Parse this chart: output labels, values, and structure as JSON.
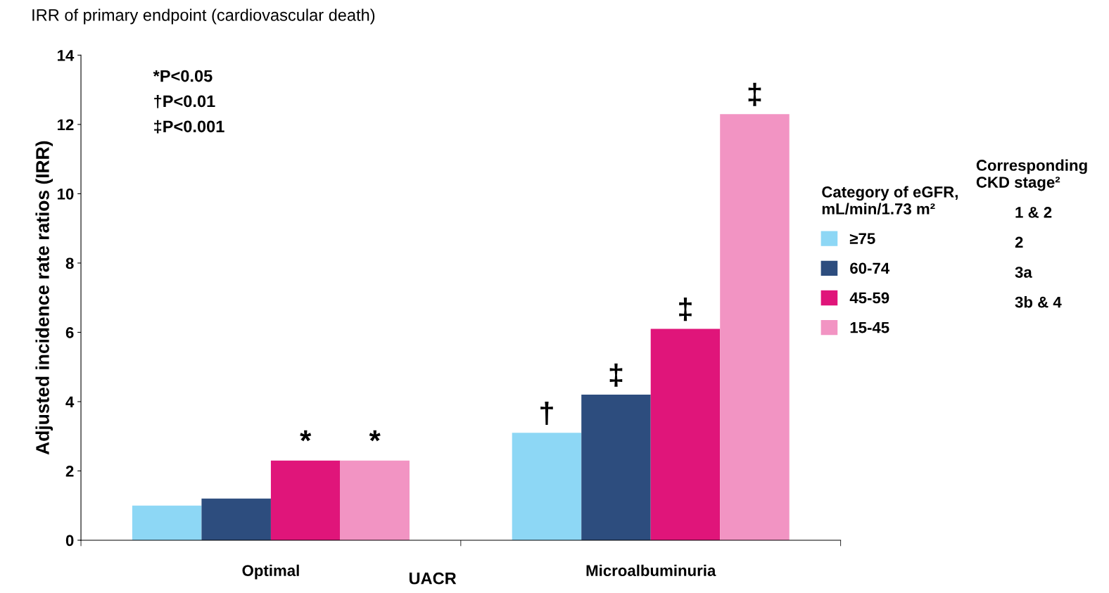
{
  "chart_data": {
    "type": "bar",
    "title": "IRR of primary endpoint (cardiovascular death)",
    "xlabel": "UACR",
    "ylabel": "Adjusted incidence rate ratios (IRR)",
    "legend_title": "Category of eGFR,\nmL/min/1.73 m²",
    "categories": [
      "Optimal",
      "Microalbuminuria"
    ],
    "series": [
      {
        "name": "≥75",
        "color": "#8dd7f5",
        "values": [
          1.0,
          3.1
        ],
        "value_labels": [
          null,
          "†"
        ]
      },
      {
        "name": "60-74",
        "color": "#2d4d7e",
        "values": [
          1.2,
          4.2
        ],
        "value_labels": [
          null,
          "‡"
        ]
      },
      {
        "name": "45-59",
        "color": "#e0157a",
        "values": [
          2.3,
          6.1
        ],
        "value_labels": [
          "*",
          "‡"
        ]
      },
      {
        "name": "15-45",
        "color": "#f294c3",
        "values": [
          2.3,
          12.3
        ],
        "value_labels": [
          "*",
          "‡"
        ]
      }
    ],
    "ylim": [
      0,
      14
    ],
    "yticks": [
      0,
      2,
      4,
      6,
      8,
      10,
      12,
      14
    ],
    "grid": false,
    "legend": "right",
    "annotations": [
      "*P<0.05",
      "†P<0.01",
      "‡P<0.001",
      "Corresponding\nCKD stage²",
      "1 & 2",
      "2",
      "3a",
      "3b & 4"
    ]
  }
}
